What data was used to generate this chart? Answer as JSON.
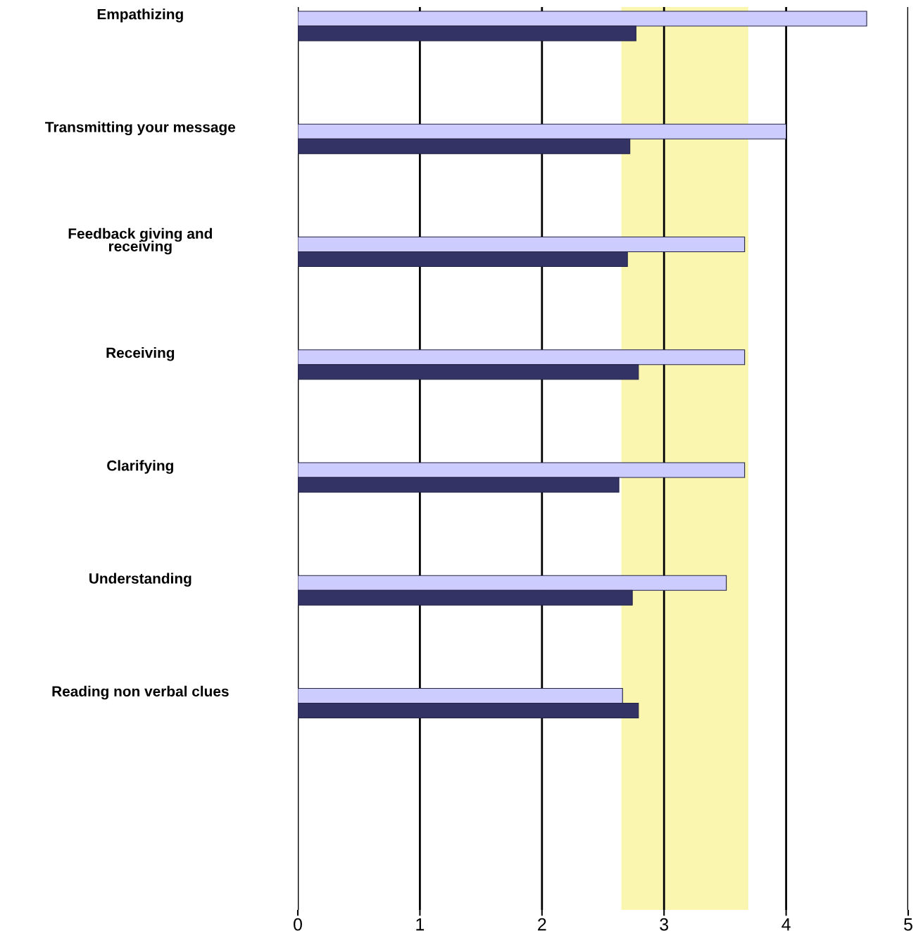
{
  "chart_data": {
    "type": "bar",
    "orientation": "horizontal",
    "categories": [
      "Empathizing",
      "Transmitting your message",
      "Feedback giving and\nreceiving",
      "Receiving",
      "Clarifying",
      "Understanding",
      "Reading non verbal clues",
      null
    ],
    "series": [
      {
        "color": "#ccccff",
        "values": [
          4.66,
          4.0,
          3.66,
          3.66,
          3.66,
          3.51,
          2.66,
          null
        ]
      },
      {
        "color": "#333366",
        "values": [
          2.77,
          2.72,
          2.7,
          2.79,
          2.63,
          2.74,
          2.79,
          null
        ]
      }
    ],
    "xlim": [
      0,
      5
    ],
    "xticks": [
      0,
      1,
      2,
      3,
      4,
      5
    ],
    "grid": "x",
    "bands": [
      {
        "axis": "x",
        "from": 2.65,
        "to": 3.69,
        "color": "#faf6b0"
      }
    ]
  }
}
